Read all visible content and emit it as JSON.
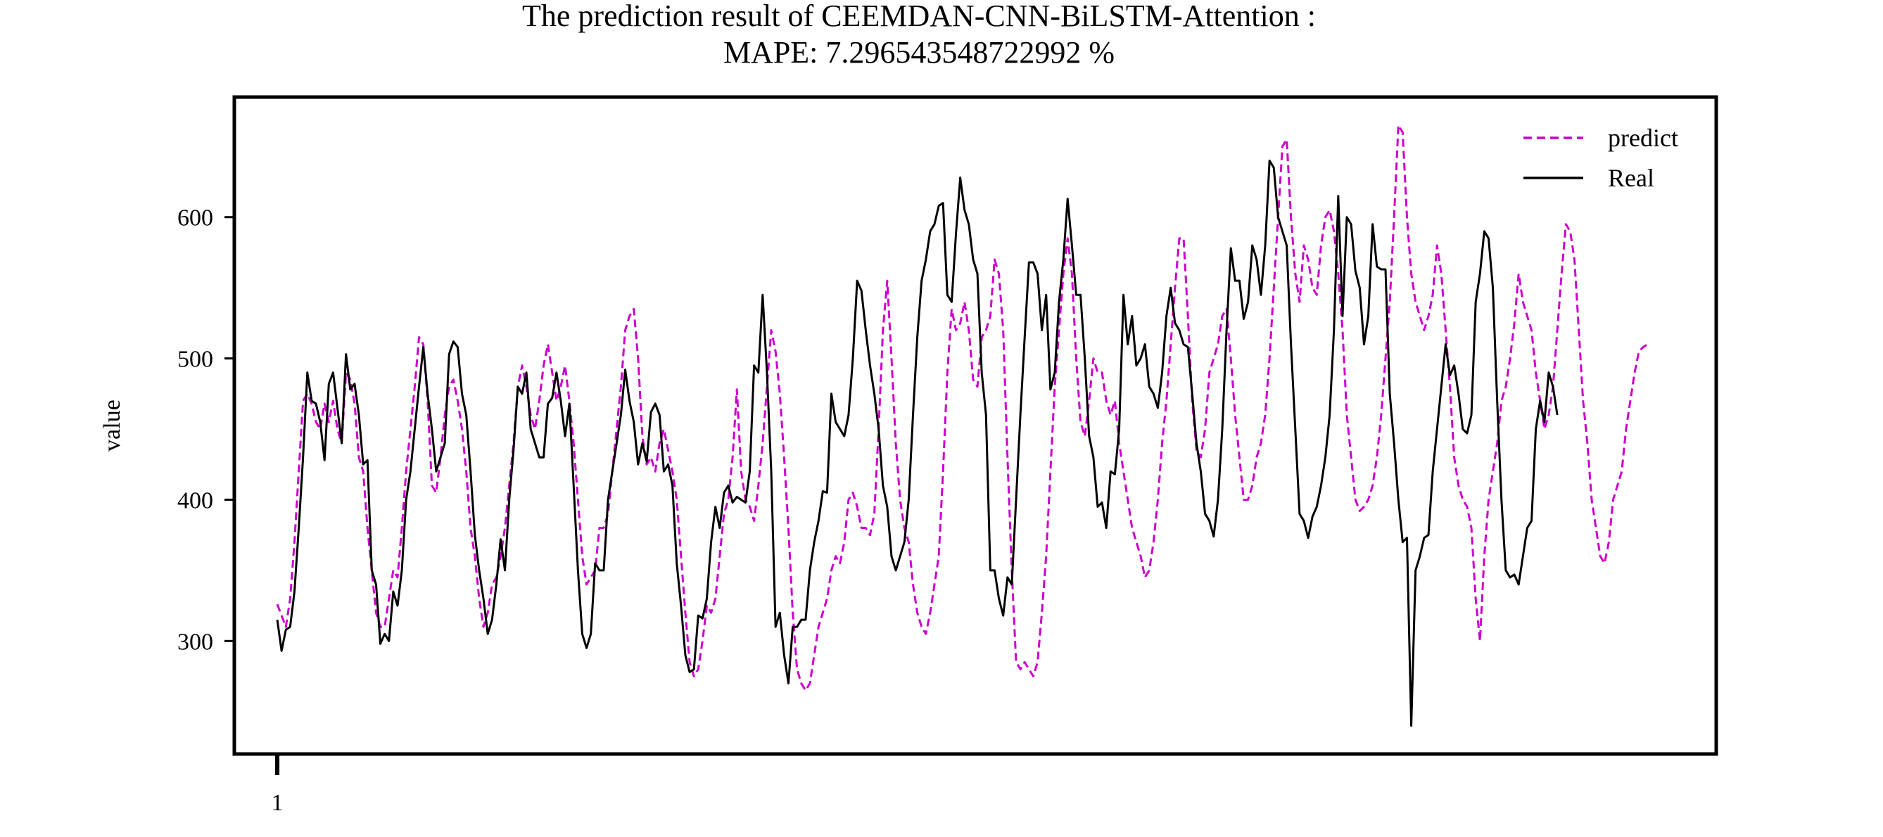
{
  "chart_data": {
    "type": "line",
    "title": "The prediction result of CEEMDAN-CNN-BiLSTM-Attention :",
    "subtitle": "MAPE: 7.296543548722992 %",
    "xlabel": "",
    "ylabel": "value",
    "x_tick_labels": [
      "1"
    ],
    "y_ticks": [
      300,
      400,
      500,
      600
    ],
    "ylim": [
      220,
      685
    ],
    "xlim": [
      -10,
      335
    ],
    "grid": false,
    "legend_position": "top-right",
    "series": [
      {
        "name": "predict",
        "color": "#cc00cc",
        "style": "dashed",
        "values": [
          326,
          318,
          310,
          330,
          370,
          420,
          470,
          475,
          468,
          455,
          450,
          468,
          455,
          470,
          450,
          440,
          490,
          485,
          468,
          430,
          420,
          380,
          350,
          320,
          310,
          310,
          330,
          350,
          345,
          380,
          420,
          450,
          480,
          515,
          510,
          470,
          410,
          405,
          430,
          460,
          480,
          485,
          470,
          450,
          420,
          380,
          360,
          330,
          310,
          320,
          340,
          345,
          360,
          380,
          410,
          440,
          480,
          495,
          480,
          460,
          450,
          470,
          495,
          510,
          490,
          470,
          480,
          495,
          470,
          440,
          400,
          360,
          340,
          345,
          350,
          380,
          380,
          390,
          420,
          450,
          480,
          520,
          530,
          535,
          500,
          445,
          425,
          430,
          420,
          440,
          450,
          435,
          420,
          400,
          360,
          320,
          285,
          275,
          280,
          300,
          325,
          320,
          330,
          360,
          390,
          400,
          430,
          478,
          420,
          400,
          395,
          385,
          410,
          440,
          480,
          520,
          505,
          475,
          430,
          380,
          320,
          280,
          270,
          265,
          270,
          290,
          310,
          320,
          330,
          350,
          360,
          355,
          370,
          400,
          405,
          395,
          380,
          380,
          375,
          390,
          450,
          520,
          555,
          500,
          440,
          400,
          380,
          370,
          340,
          320,
          310,
          305,
          320,
          340,
          360,
          420,
          490,
          535,
          520,
          525,
          540,
          520,
          485,
          480,
          515,
          520,
          530,
          570,
          560,
          520,
          430,
          350,
          285,
          280,
          285,
          280,
          275,
          285,
          320,
          360,
          420,
          480,
          520,
          560,
          585,
          560,
          500,
          455,
          445,
          470,
          500,
          490,
          490,
          470,
          460,
          470,
          440,
          420,
          400,
          380,
          370,
          360,
          345,
          350,
          370,
          400,
          440,
          470,
          510,
          550,
          585,
          585,
          530,
          470,
          435,
          430,
          450,
          490,
          500,
          510,
          530,
          535,
          500,
          460,
          430,
          400,
          400,
          410,
          430,
          440,
          460,
          500,
          550,
          600,
          650,
          655,
          600,
          560,
          540,
          580,
          570,
          550,
          545,
          580,
          600,
          605,
          590,
          560,
          520,
          460,
          430,
          400,
          392,
          395,
          400,
          410,
          430,
          460,
          500,
          540,
          600,
          665,
          660,
          600,
          560,
          540,
          530,
          520,
          530,
          545,
          580,
          560,
          520,
          480,
          430,
          410,
          400,
          395,
          380,
          330,
          300,
          360,
          400,
          420,
          440,
          470,
          480,
          500,
          525,
          560,
          540,
          530,
          520,
          490,
          470,
          450,
          460,
          480,
          520,
          560,
          595,
          590,
          570,
          520,
          470,
          440,
          400,
          380,
          360,
          355,
          370,
          400,
          410,
          420,
          450,
          470,
          490,
          505,
          508,
          510
        ]
      },
      {
        "name": "Real",
        "color": "#000000",
        "style": "solid",
        "values": [
          315,
          293,
          308,
          310,
          335,
          380,
          430,
          490,
          470,
          468,
          455,
          428,
          482,
          490,
          465,
          440,
          503,
          478,
          482,
          460,
          425,
          428,
          350,
          340,
          298,
          305,
          300,
          335,
          325,
          350,
          400,
          420,
          450,
          480,
          508,
          475,
          450,
          420,
          430,
          440,
          503,
          512,
          508,
          475,
          460,
          420,
          375,
          350,
          330,
          305,
          315,
          340,
          372,
          350,
          400,
          435,
          480,
          475,
          490,
          450,
          440,
          430,
          430,
          468,
          472,
          490,
          470,
          445,
          468,
          410,
          350,
          305,
          295,
          305,
          355,
          350,
          350,
          400,
          420,
          440,
          460,
          492,
          470,
          455,
          425,
          440,
          427,
          462,
          468,
          460,
          420,
          425,
          410,
          355,
          325,
          290,
          278,
          280,
          318,
          316,
          330,
          370,
          395,
          380,
          405,
          410,
          398,
          402,
          400,
          398,
          420,
          495,
          490,
          545,
          490,
          420,
          310,
          320,
          290,
          270,
          310,
          310,
          315,
          315,
          350,
          370,
          385,
          406,
          405,
          475,
          455,
          450,
          445,
          460,
          500,
          555,
          548,
          520,
          495,
          475,
          450,
          410,
          395,
          360,
          350,
          360,
          370,
          400,
          460,
          515,
          555,
          570,
          590,
          595,
          608,
          610,
          545,
          540,
          588,
          628,
          605,
          595,
          570,
          560,
          490,
          460,
          350,
          350,
          330,
          318,
          345,
          340,
          400,
          460,
          515,
          568,
          568,
          560,
          520,
          545,
          478,
          490,
          540,
          570,
          613,
          580,
          545,
          545,
          500,
          445,
          430,
          395,
          398,
          380,
          420,
          418,
          450,
          545,
          510,
          530,
          495,
          500,
          510,
          480,
          475,
          465,
          490,
          530,
          550,
          525,
          520,
          510,
          508,
          475,
          440,
          420,
          390,
          385,
          374,
          400,
          450,
          520,
          578,
          555,
          555,
          528,
          540,
          580,
          570,
          545,
          580,
          640,
          635,
          600,
          590,
          580,
          510,
          450,
          390,
          385,
          373,
          388,
          395,
          410,
          430,
          460,
          520,
          615,
          530,
          600,
          595,
          562,
          550,
          510,
          530,
          595,
          565,
          563,
          563,
          475,
          440,
          400,
          370,
          373,
          240,
          350,
          360,
          373,
          375,
          420,
          450,
          480,
          510,
          488,
          495,
          475,
          450,
          447,
          460,
          540,
          560,
          590,
          585,
          550,
          470,
          400,
          350,
          345,
          347,
          340,
          360,
          380,
          385,
          450,
          470,
          455,
          490,
          480,
          460
        ]
      }
    ]
  }
}
